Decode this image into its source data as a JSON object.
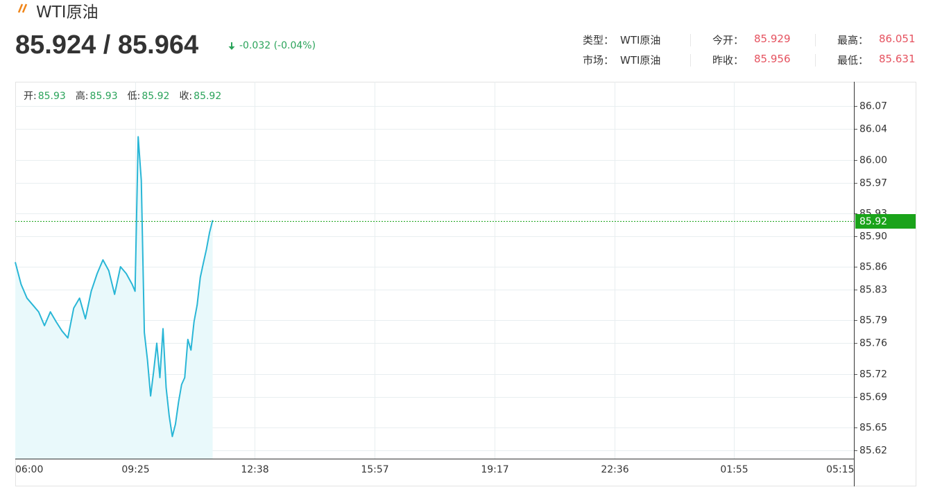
{
  "header": {
    "title": "WTI原油",
    "price": "85.924 / 85.964",
    "change": "-0.032 (-0.04%)",
    "info": [
      [
        {
          "label": "类型：",
          "value": "WTI原油"
        },
        {
          "label": "今开：",
          "value": "85.929"
        },
        {
          "label": "最高：",
          "value": "86.051"
        }
      ],
      [
        {
          "label": "市场：",
          "value": "WTI原油"
        },
        {
          "label": "昨收：",
          "value": "85.956"
        },
        {
          "label": "最低：",
          "value": "85.631"
        }
      ]
    ]
  },
  "chart_data": {
    "type": "area",
    "ohlc": [
      {
        "label": "开:",
        "value": 85.93
      },
      {
        "label": "高:",
        "value": 85.93
      },
      {
        "label": "低:",
        "value": 85.92
      },
      {
        "label": "收:",
        "value": 85.92
      }
    ],
    "xticks": [
      "06:00",
      "09:25",
      "12:38",
      "15:57",
      "19:17",
      "22:36",
      "01:55",
      "05:15"
    ],
    "x": [
      "06:00",
      "06:10",
      "06:20",
      "06:30",
      "06:40",
      "06:50",
      "07:00",
      "07:10",
      "07:20",
      "07:30",
      "07:40",
      "07:50",
      "08:00",
      "08:10",
      "08:20",
      "08:30",
      "08:40",
      "08:50",
      "09:00",
      "09:10",
      "09:20",
      "09:25",
      "09:30",
      "09:35",
      "09:40",
      "09:45",
      "09:50",
      "09:55",
      "10:00",
      "10:05",
      "10:10",
      "10:15",
      "10:20",
      "10:25",
      "10:30",
      "10:35",
      "10:40",
      "10:45",
      "10:50",
      "10:55",
      "11:00",
      "11:05",
      "11:10",
      "11:15",
      "11:20",
      "11:25",
      "11:30"
    ],
    "series": [
      {
        "color": "#29b6d6",
        "fill": "#e9f9fb",
        "values": [
          85.866,
          85.837,
          85.819,
          85.81,
          85.801,
          85.783,
          85.801,
          85.788,
          85.776,
          85.767,
          85.806,
          85.819,
          85.792,
          85.828,
          85.851,
          85.869,
          85.855,
          85.824,
          85.86,
          85.851,
          85.837,
          85.828,
          86.03,
          85.973,
          85.774,
          85.738,
          85.691,
          85.724,
          85.76,
          85.715,
          85.779,
          85.702,
          85.665,
          85.638,
          85.654,
          85.683,
          85.706,
          85.715,
          85.765,
          85.751,
          85.788,
          85.81,
          85.846,
          85.865,
          85.883,
          85.905,
          85.921
        ]
      }
    ],
    "current": 85.92,
    "current_color": "#1aa31a",
    "ylim": [
      85.609,
      86.102
    ],
    "yticks": [
      85.62,
      85.65,
      85.69,
      85.72,
      85.76,
      85.79,
      85.83,
      85.86,
      {
        "value": 85.9,
        "label": "85.90"
      },
      85.93,
      85.97,
      {
        "value": 86,
        "label": "86.00"
      },
      86.04,
      86.07
    ],
    "grid": true
  }
}
